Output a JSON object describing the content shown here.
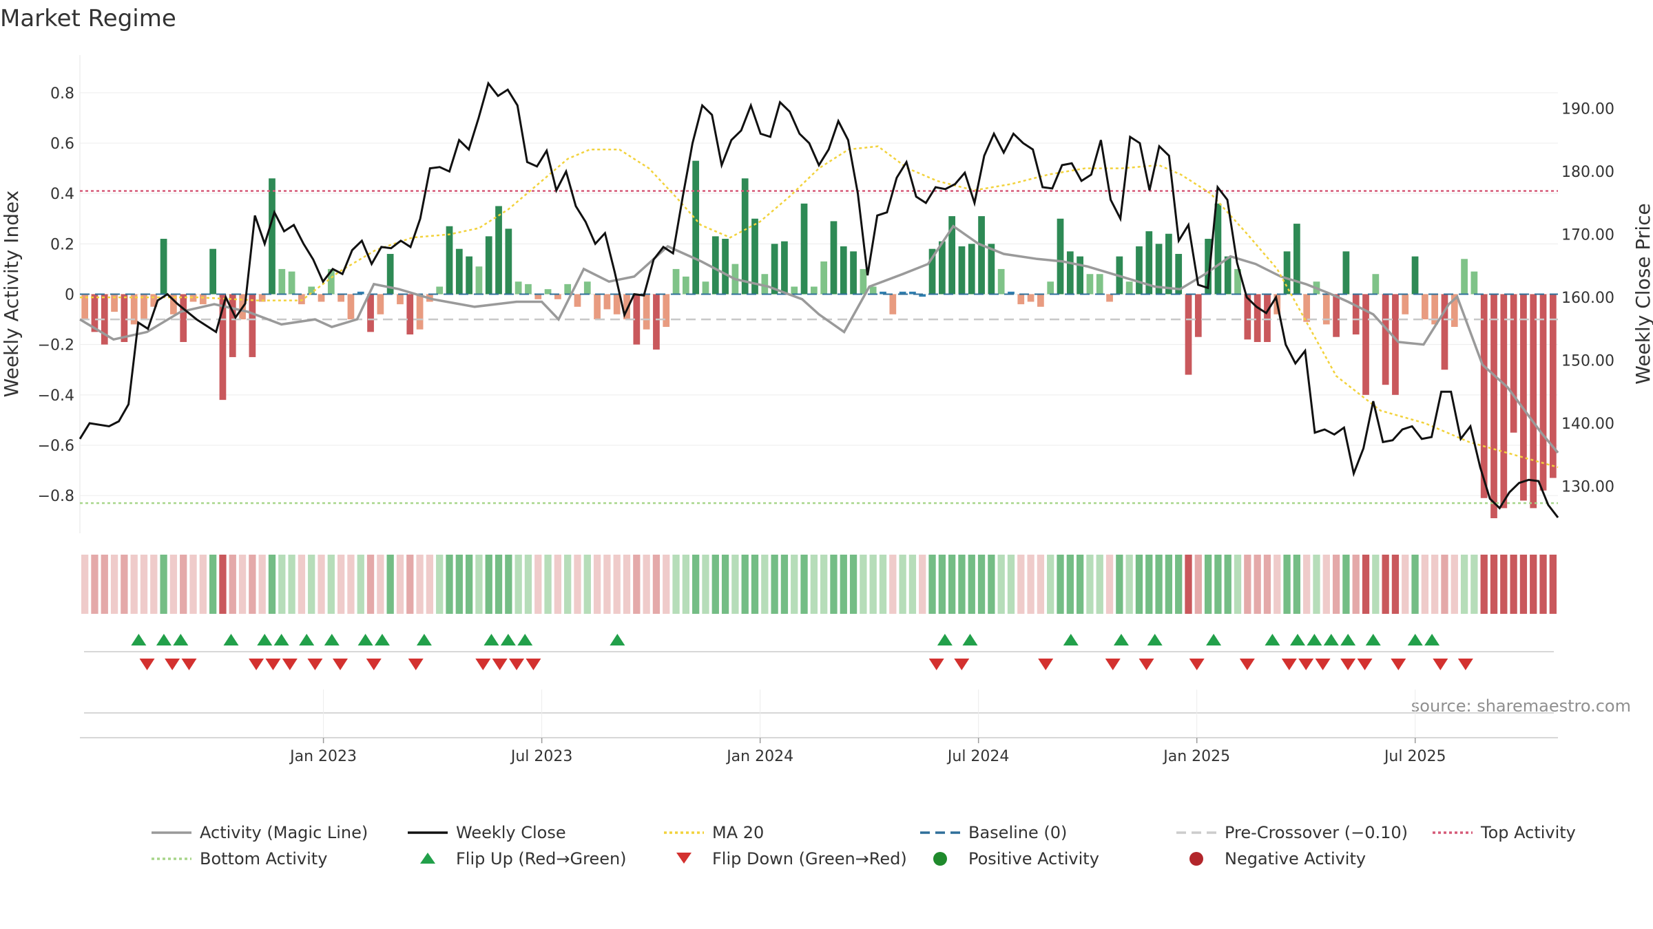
{
  "chart_data": {
    "type": "bar",
    "title": "Market Regime",
    "ylabel_left": "Weekly Activity Index",
    "ylabel_right": "Weekly Close Price",
    "source": "source: sharemaestro.com",
    "ylim_left": [
      -0.95,
      0.95
    ],
    "ylim_right": [
      122.5,
      198.5
    ],
    "left_ticks": [
      {
        "v": 0.8,
        "label": "0.8"
      },
      {
        "v": 0.6,
        "label": "0.6"
      },
      {
        "v": 0.4,
        "label": "0.4"
      },
      {
        "v": 0.2,
        "label": "0.2"
      },
      {
        "v": 0,
        "label": "0"
      },
      {
        "v": -0.2,
        "label": "−0.2"
      },
      {
        "v": -0.4,
        "label": "−0.4"
      },
      {
        "v": -0.6,
        "label": "−0.6"
      },
      {
        "v": -0.8,
        "label": "−0.8"
      }
    ],
    "right_ticks": [
      {
        "v": 190,
        "label": "190.00"
      },
      {
        "v": 180,
        "label": "180.00"
      },
      {
        "v": 170,
        "label": "170.00"
      },
      {
        "v": 160,
        "label": "160.00"
      },
      {
        "v": 150,
        "label": "150.00"
      },
      {
        "v": 140,
        "label": "140.00"
      },
      {
        "v": 130,
        "label": "130.00"
      }
    ],
    "x_ticks": [
      {
        "week": 29,
        "label": "Jan 2023"
      },
      {
        "week": 55,
        "label": "Jul 2023"
      },
      {
        "week": 81,
        "label": "Jan 2024"
      },
      {
        "week": 107,
        "label": "Jul 2024"
      },
      {
        "week": 133,
        "label": "Jan 2025"
      },
      {
        "week": 159,
        "label": "Jul 2025"
      }
    ],
    "top_activity": 0.41,
    "bottom_activity": -0.83,
    "pre_crossover": -0.1,
    "baseline": 0,
    "activity_points": [
      [
        0,
        -0.1
      ],
      [
        4,
        -0.18
      ],
      [
        8,
        -0.15
      ],
      [
        12,
        -0.07
      ],
      [
        16,
        -0.04
      ],
      [
        20,
        -0.07
      ],
      [
        24,
        -0.12
      ],
      [
        28,
        -0.1
      ],
      [
        30,
        -0.13
      ],
      [
        33,
        -0.1
      ],
      [
        35,
        0.04
      ],
      [
        38,
        0.02
      ],
      [
        42,
        -0.02
      ],
      [
        47,
        -0.05
      ],
      [
        52,
        -0.03
      ],
      [
        55,
        -0.03
      ],
      [
        57,
        -0.1
      ],
      [
        60,
        0.1
      ],
      [
        63,
        0.05
      ],
      [
        66,
        0.07
      ],
      [
        70,
        0.19
      ],
      [
        74,
        0.13
      ],
      [
        78,
        0.06
      ],
      [
        82,
        0.03
      ],
      [
        86,
        -0.02
      ],
      [
        88,
        -0.08
      ],
      [
        91,
        -0.15
      ],
      [
        94,
        0.03
      ],
      [
        98,
        0.08
      ],
      [
        101,
        0.12
      ],
      [
        104,
        0.27
      ],
      [
        107,
        0.2
      ],
      [
        110,
        0.16
      ],
      [
        114,
        0.14
      ],
      [
        117,
        0.13
      ],
      [
        120,
        0.11
      ],
      [
        124,
        0.07
      ],
      [
        128,
        0.03
      ],
      [
        131,
        0.02
      ],
      [
        134,
        0.08
      ],
      [
        137,
        0.15
      ],
      [
        140,
        0.12
      ],
      [
        143,
        0.07
      ],
      [
        146,
        0.04
      ],
      [
        149,
        0.0
      ],
      [
        151,
        -0.03
      ],
      [
        154,
        -0.08
      ],
      [
        157,
        -0.19
      ],
      [
        160,
        -0.2
      ],
      [
        163,
        -0.04
      ],
      [
        164,
        -0.01
      ],
      [
        167,
        -0.28
      ],
      [
        170,
        -0.37
      ],
      [
        174,
        -0.55
      ],
      [
        176,
        -0.63
      ]
    ],
    "close_points": [
      [
        0,
        137.5
      ],
      [
        1,
        140
      ],
      [
        3,
        139.5
      ],
      [
        4,
        140.3
      ],
      [
        5,
        143
      ],
      [
        6,
        156
      ],
      [
        7,
        155
      ],
      [
        8,
        159.5
      ],
      [
        9,
        160.5
      ],
      [
        10,
        159
      ],
      [
        12,
        156.5
      ],
      [
        14,
        154.5
      ],
      [
        15,
        160
      ],
      [
        16,
        156.8
      ],
      [
        17,
        159
      ],
      [
        18,
        173
      ],
      [
        19,
        168.5
      ],
      [
        20,
        173.5
      ],
      [
        21,
        170.5
      ],
      [
        22,
        171.5
      ],
      [
        23,
        168.5
      ],
      [
        24,
        166
      ],
      [
        25,
        162.5
      ],
      [
        26,
        164.5
      ],
      [
        27,
        163.7
      ],
      [
        28,
        167.5
      ],
      [
        29,
        169
      ],
      [
        30,
        165.3
      ],
      [
        31,
        168
      ],
      [
        32,
        167.8
      ],
      [
        33,
        169
      ],
      [
        34,
        168
      ],
      [
        35,
        172.5
      ],
      [
        36,
        180.5
      ],
      [
        37,
        180.7
      ],
      [
        38,
        180
      ],
      [
        39,
        185
      ],
      [
        40,
        183.5
      ],
      [
        41,
        188.5
      ],
      [
        42,
        194
      ],
      [
        43,
        192
      ],
      [
        44,
        193
      ],
      [
        45,
        190.5
      ],
      [
        46,
        181.5
      ],
      [
        47,
        180.8
      ],
      [
        48,
        183.3
      ],
      [
        49,
        177
      ],
      [
        50,
        180
      ],
      [
        51,
        174.5
      ],
      [
        52,
        172
      ],
      [
        53,
        168.5
      ],
      [
        54,
        170.2
      ],
      [
        55,
        164
      ],
      [
        56,
        157.2
      ],
      [
        57,
        160.5
      ],
      [
        58,
        160.3
      ],
      [
        59,
        166
      ],
      [
        60,
        168
      ],
      [
        61,
        167
      ],
      [
        62,
        176
      ],
      [
        63,
        184.5
      ],
      [
        64,
        190.5
      ],
      [
        65,
        189
      ],
      [
        66,
        181
      ],
      [
        67,
        185
      ],
      [
        68,
        186.5
      ],
      [
        69,
        190.5
      ],
      [
        70,
        186
      ],
      [
        71,
        185.5
      ],
      [
        72,
        191
      ],
      [
        73,
        189.5
      ],
      [
        74,
        186
      ],
      [
        75,
        184.5
      ],
      [
        76,
        181
      ],
      [
        77,
        183.5
      ],
      [
        78,
        188
      ],
      [
        79,
        185
      ],
      [
        80,
        176.5
      ],
      [
        81,
        163.5
      ],
      [
        82,
        173
      ],
      [
        83,
        173.5
      ],
      [
        84,
        179
      ],
      [
        85,
        181.5
      ],
      [
        86,
        176
      ],
      [
        87,
        175
      ],
      [
        88,
        177.5
      ],
      [
        89,
        177.2
      ],
      [
        90,
        178
      ],
      [
        91,
        179.8
      ],
      [
        92,
        175
      ],
      [
        93,
        182.5
      ],
      [
        94,
        186
      ],
      [
        95,
        183
      ],
      [
        96,
        186
      ],
      [
        97,
        184.5
      ],
      [
        98,
        183.5
      ],
      [
        99,
        177.5
      ],
      [
        100,
        177.3
      ],
      [
        101,
        181
      ],
      [
        102,
        181.3
      ],
      [
        103,
        178.5
      ],
      [
        104,
        179.5
      ],
      [
        105,
        185
      ],
      [
        106,
        175.5
      ],
      [
        107,
        172.5
      ],
      [
        108,
        185.5
      ],
      [
        109,
        184.5
      ],
      [
        110,
        177
      ],
      [
        111,
        184
      ],
      [
        112,
        182.5
      ],
      [
        113,
        169
      ],
      [
        114,
        171.5
      ],
      [
        115,
        162
      ],
      [
        116,
        161.5
      ],
      [
        117,
        177.5
      ],
      [
        118,
        175.5
      ],
      [
        119,
        165.5
      ],
      [
        120,
        160
      ],
      [
        121,
        158.5
      ],
      [
        122,
        157.5
      ],
      [
        123,
        160
      ],
      [
        124,
        152.5
      ],
      [
        125,
        149.5
      ],
      [
        126,
        151.5
      ],
      [
        127,
        138.5
      ],
      [
        128,
        139
      ],
      [
        129,
        138.2
      ],
      [
        130,
        139.3
      ],
      [
        131,
        132
      ],
      [
        132,
        136
      ],
      [
        133,
        143.5
      ],
      [
        134,
        137
      ],
      [
        135,
        137.3
      ],
      [
        136,
        139
      ],
      [
        137,
        139.5
      ],
      [
        138,
        137.5
      ],
      [
        139,
        137.8
      ],
      [
        140,
        145
      ],
      [
        141,
        145
      ],
      [
        142,
        137.5
      ],
      [
        143,
        139.5
      ],
      [
        144,
        133
      ],
      [
        145,
        128
      ],
      [
        146,
        126.5
      ],
      [
        147,
        129
      ],
      [
        148,
        130.5
      ],
      [
        149,
        131
      ],
      [
        150,
        130.8
      ],
      [
        151,
        127
      ],
      [
        152,
        125
      ]
    ],
    "ma20_points": [
      [
        0,
        160
      ],
      [
        8,
        160
      ],
      [
        16,
        160
      ],
      [
        24,
        159.5
      ],
      [
        30,
        159.5
      ],
      [
        35,
        164
      ],
      [
        40,
        167.5
      ],
      [
        45,
        169.5
      ],
      [
        50,
        170
      ],
      [
        54,
        171
      ],
      [
        58,
        174
      ],
      [
        62,
        178
      ],
      [
        66,
        182
      ],
      [
        69,
        183.5
      ],
      [
        73,
        183.5
      ],
      [
        77,
        180.5
      ],
      [
        81,
        175.5
      ],
      [
        84,
        171.5
      ],
      [
        88,
        169.5
      ],
      [
        92,
        172
      ],
      [
        96,
        176
      ],
      [
        100,
        180.5
      ],
      [
        104,
        183.5
      ],
      [
        108,
        184
      ],
      [
        112,
        180.5
      ],
      [
        116,
        178.5
      ],
      [
        121,
        177
      ],
      [
        126,
        178
      ],
      [
        131,
        179.5
      ],
      [
        136,
        180.5
      ],
      [
        141,
        180.5
      ],
      [
        146,
        181
      ],
      [
        149,
        179.5
      ],
      [
        153,
        176.5
      ],
      [
        158,
        170
      ],
      [
        162,
        164.5
      ],
      [
        166,
        156
      ],
      [
        170,
        147.5
      ],
      [
        176,
        142
      ],
      [
        182,
        140
      ],
      [
        188,
        137
      ],
      [
        194,
        135
      ],
      [
        200,
        133
      ]
    ],
    "bars_note": "weekly activity values, one per week",
    "bars": [
      -0.1,
      -0.15,
      -0.2,
      -0.07,
      -0.19,
      -0.12,
      -0.1,
      -0.05,
      0.22,
      -0.08,
      -0.19,
      -0.03,
      -0.04,
      0.18,
      -0.42,
      -0.25,
      -0.1,
      -0.25,
      -0.03,
      0.46,
      0.1,
      0.09,
      -0.04,
      0.03,
      -0.03,
      0.1,
      -0.03,
      -0.1,
      0.01,
      -0.15,
      -0.08,
      0.16,
      -0.04,
      -0.16,
      -0.14,
      -0.03,
      0.03,
      0.27,
      0.18,
      0.15,
      0.11,
      0.23,
      0.35,
      0.26,
      0.05,
      0.04,
      -0.02,
      0.02,
      -0.02,
      0.04,
      -0.05,
      0.05,
      -0.1,
      -0.06,
      -0.08,
      -0.1,
      -0.2,
      -0.14,
      -0.22,
      -0.13,
      0.1,
      0.07,
      0.53,
      0.05,
      0.23,
      0.22,
      0.12,
      0.46,
      0.3,
      0.08,
      0.2,
      0.21,
      0.03,
      0.36,
      0.03,
      0.13,
      0.29,
      0.19,
      0.17,
      0.1,
      0.03,
      0.01,
      -0.08,
      0.01,
      0.01,
      -0.01,
      0.18,
      0.21,
      0.31,
      0.19,
      0.2,
      0.31,
      0.2,
      0.1,
      0.01,
      -0.04,
      -0.03,
      -0.05,
      0.05,
      0.3,
      0.17,
      0.15,
      0.08,
      0.08,
      -0.03,
      0.15,
      0.05,
      0.19,
      0.25,
      0.2,
      0.24,
      0.16,
      -0.32,
      -0.17,
      0.22,
      0.36,
      0.15,
      0.1,
      -0.18,
      -0.19,
      -0.19,
      -0.08,
      0.17,
      0.28,
      -0.11,
      0.05,
      -0.12,
      -0.17,
      0.17,
      -0.16,
      -0.4,
      0.08,
      -0.36,
      -0.4,
      -0.08,
      0.15,
      -0.1,
      -0.12,
      -0.3,
      -0.13,
      0.14,
      0.09,
      -0.81,
      -0.89,
      -0.85,
      -0.55,
      -0.82,
      -0.85,
      -0.78,
      -0.73
    ],
    "flip_up_weeks": [
      7,
      10,
      12,
      18,
      22,
      24,
      27,
      30,
      34,
      36,
      41,
      49,
      51,
      53,
      64,
      103,
      106,
      118,
      124,
      128,
      135,
      142,
      145,
      147,
      149,
      151,
      154,
      159,
      161
    ],
    "flip_down_weeks": [
      8,
      11,
      13,
      21,
      23,
      25,
      28,
      31,
      35,
      40,
      48,
      50,
      52,
      54,
      102,
      105,
      115,
      123,
      127,
      133,
      139,
      144,
      146,
      148,
      151,
      153,
      157,
      162,
      165
    ],
    "legend": [
      {
        "label": "Activity (Magic Line)",
        "kind": "line",
        "color": "#999999",
        "dash": ""
      },
      {
        "label": "Weekly Close",
        "kind": "line",
        "color": "#111111",
        "dash": ""
      },
      {
        "label": "MA 20",
        "kind": "line",
        "color": "#f2d23c",
        "dash": "4,4"
      },
      {
        "label": "Baseline (0)",
        "kind": "line",
        "color": "#2f6f9a",
        "dash": "14,8"
      },
      {
        "label": "Pre-Crossover (−0.10)",
        "kind": "line",
        "color": "#cccccc",
        "dash": "14,8"
      },
      {
        "label": "Top Activity",
        "kind": "line",
        "color": "#d65a78",
        "dash": "4,4"
      },
      {
        "label": "Bottom Activity",
        "kind": "line",
        "color": "#a7d58a",
        "dash": "4,4"
      },
      {
        "label": "Flip Up (Red→Green)",
        "kind": "tri-up",
        "color": "#22a04a",
        "dash": ""
      },
      {
        "label": "Flip Down (Green→Red)",
        "kind": "tri-down",
        "color": "#d3312f",
        "dash": ""
      },
      {
        "label": "Positive Activity",
        "kind": "dot",
        "color": "#1f8a2c",
        "dash": ""
      },
      {
        "label": "Negative Activity",
        "kind": "dot",
        "color": "#b2262b",
        "dash": ""
      }
    ],
    "colors": {
      "pos_strong": "#2e8a55",
      "pos_light": "#7fc388",
      "neg_strong": "#c9585c",
      "neg_light": "#e89b80",
      "baseline_marker": "#2f7fb0"
    },
    "grid": true,
    "legend_position": "bottom"
  }
}
